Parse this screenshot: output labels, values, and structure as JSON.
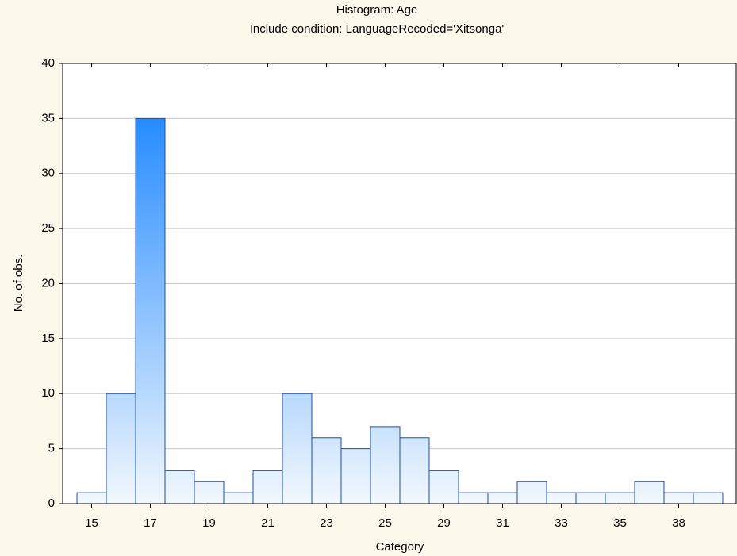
{
  "chart_data": {
    "type": "bar",
    "title": "Histogram: Age",
    "subtitle": "Include condition: LanguageRecoded='Xitsonga'",
    "x_label": "Category",
    "y_label": "No. of obs.",
    "categories": [
      "15",
      null,
      "17",
      null,
      "19",
      null,
      "21",
      null,
      "23",
      null,
      "25",
      null,
      "29",
      null,
      "31",
      null,
      "33",
      null,
      "35",
      null,
      "38",
      null
    ],
    "values": [
      1,
      10,
      35,
      3,
      2,
      1,
      3,
      10,
      6,
      5,
      7,
      6,
      3,
      1,
      1,
      2,
      1,
      1,
      1,
      2,
      1,
      1
    ],
    "color": "#0a7cff",
    "ylim": [
      0,
      40
    ],
    "yticks": [
      0,
      5,
      10,
      15,
      20,
      25,
      30,
      35,
      40
    ],
    "grid": true
  }
}
